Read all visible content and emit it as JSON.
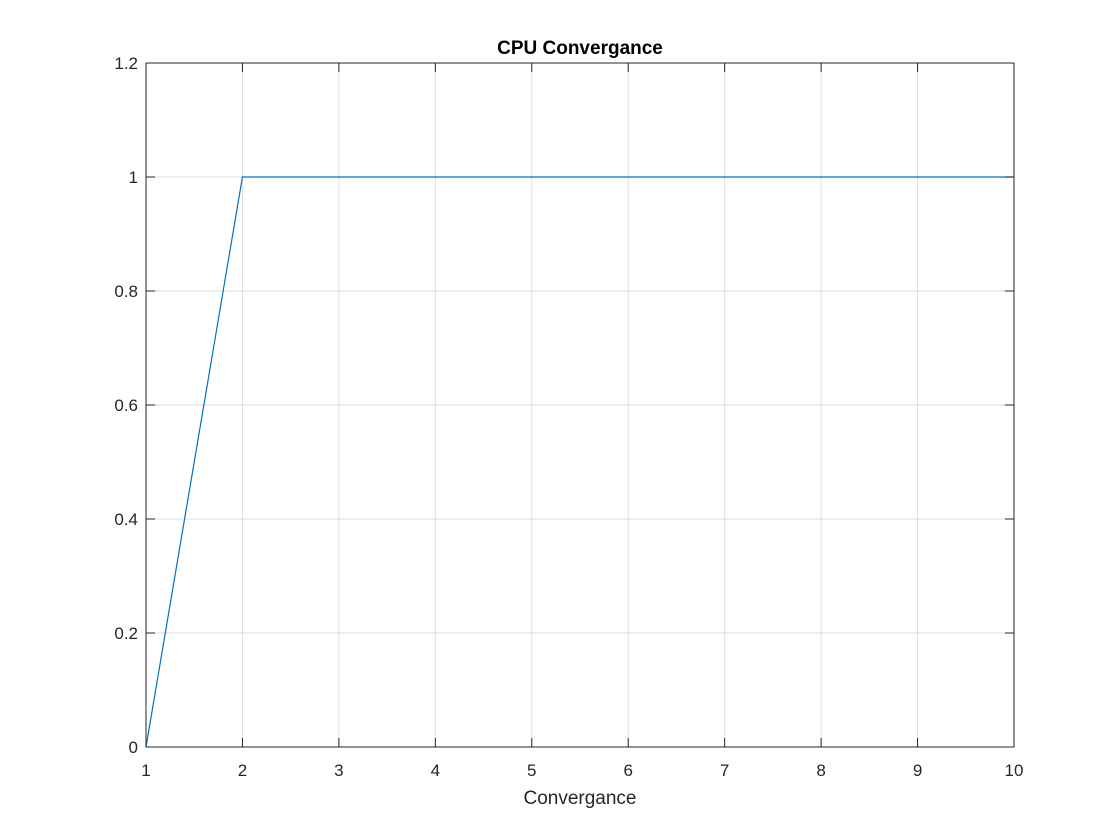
{
  "chart_data": {
    "type": "line",
    "title": "CPU Convergance",
    "xlabel": "Convergance",
    "ylabel": "",
    "xlim": [
      1,
      10
    ],
    "ylim": [
      0,
      1.2
    ],
    "x_ticks": [
      1,
      2,
      3,
      4,
      5,
      6,
      7,
      8,
      9,
      10
    ],
    "x_tick_labels": [
      "1",
      "2",
      "3",
      "4",
      "5",
      "6",
      "7",
      "8",
      "9",
      "10"
    ],
    "y_ticks": [
      0,
      0.2,
      0.4,
      0.6,
      0.8,
      1,
      1.2
    ],
    "y_tick_labels": [
      "0",
      "0.2",
      "0.4",
      "0.6",
      "0.8",
      "1",
      "1.2"
    ],
    "grid": true,
    "box": true,
    "series": [
      {
        "x": [
          1,
          2,
          3,
          4,
          5,
          6,
          7,
          8,
          9,
          10
        ],
        "values": [
          0,
          1,
          1,
          1,
          1,
          1,
          1,
          1,
          1,
          1
        ],
        "color": "#0072BD"
      }
    ],
    "colors": {
      "axis": "#262626",
      "grid": "#dcdcdc",
      "background": "#ffffff"
    }
  }
}
